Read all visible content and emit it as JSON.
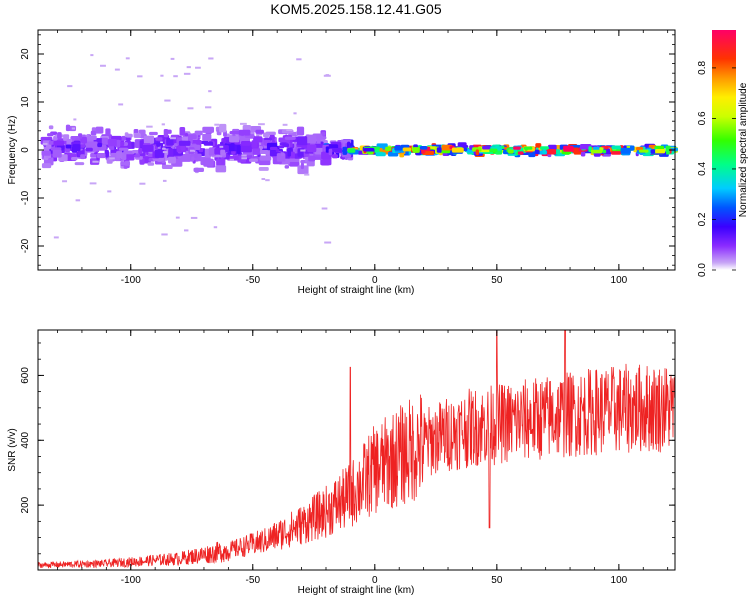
{
  "title": "KOM5.2025.158.12.41.G05",
  "chart_data": [
    {
      "type": "heatmap",
      "xlabel": "Height of straight line (km)",
      "ylabel": "Frequency (Hz)",
      "xlim": [
        -138,
        123
      ],
      "ylim": [
        -25,
        25
      ],
      "xticks": [
        -100,
        -50,
        0,
        50,
        100
      ],
      "yticks": [
        20,
        10,
        0,
        -10,
        -20
      ],
      "colorbar": {
        "label": "Normalized spectral amplitude",
        "range": [
          0,
          0.95
        ],
        "ticks": [
          0.0,
          0.2,
          0.4,
          0.6,
          0.8
        ],
        "colors": [
          "#c8a6f6",
          "#6a00ff",
          "#0033ff",
          "#00ccff",
          "#00ff66",
          "#66ff00",
          "#ffff00",
          "#ff9900",
          "#ff0000",
          "#ff0066"
        ]
      },
      "segments": [
        {
          "x_start": -135,
          "x_end": -20,
          "f_center": 0.5,
          "f_spread": 5.5,
          "amp": 0.12
        },
        {
          "x_start": -20,
          "x_end": -10,
          "f_center": 0.3,
          "f_spread": 2.5,
          "amp": 0.22
        },
        {
          "x_start": -10,
          "x_end": 123,
          "f_center": 0.0,
          "f_spread": 1.2,
          "amp": 0.6
        }
      ]
    },
    {
      "type": "line",
      "xlabel": "Height of straight line (km)",
      "ylabel": "SNR (v/v)",
      "xlim": [
        -138,
        123
      ],
      "ylim": [
        0,
        740
      ],
      "xticks": [
        -100,
        -50,
        0,
        50,
        100
      ],
      "yticks": [
        200,
        400,
        600
      ],
      "series": [
        {
          "color": "#ee2222",
          "trend_x": [
            -138,
            -110,
            -80,
            -60,
            -45,
            -30,
            -20,
            -10,
            -5,
            0,
            10,
            20,
            30,
            40,
            50,
            60,
            70,
            80,
            90,
            100,
            110,
            123
          ],
          "trend_y": [
            15,
            20,
            35,
            60,
            90,
            140,
            180,
            230,
            270,
            310,
            350,
            390,
            420,
            440,
            450,
            460,
            470,
            480,
            490,
            495,
            500,
            500
          ],
          "peaks": [
            [
              -10,
              625
            ],
            [
              50,
              735
            ],
            [
              78,
              740
            ],
            [
              47,
              130
            ]
          ]
        }
      ]
    }
  ]
}
